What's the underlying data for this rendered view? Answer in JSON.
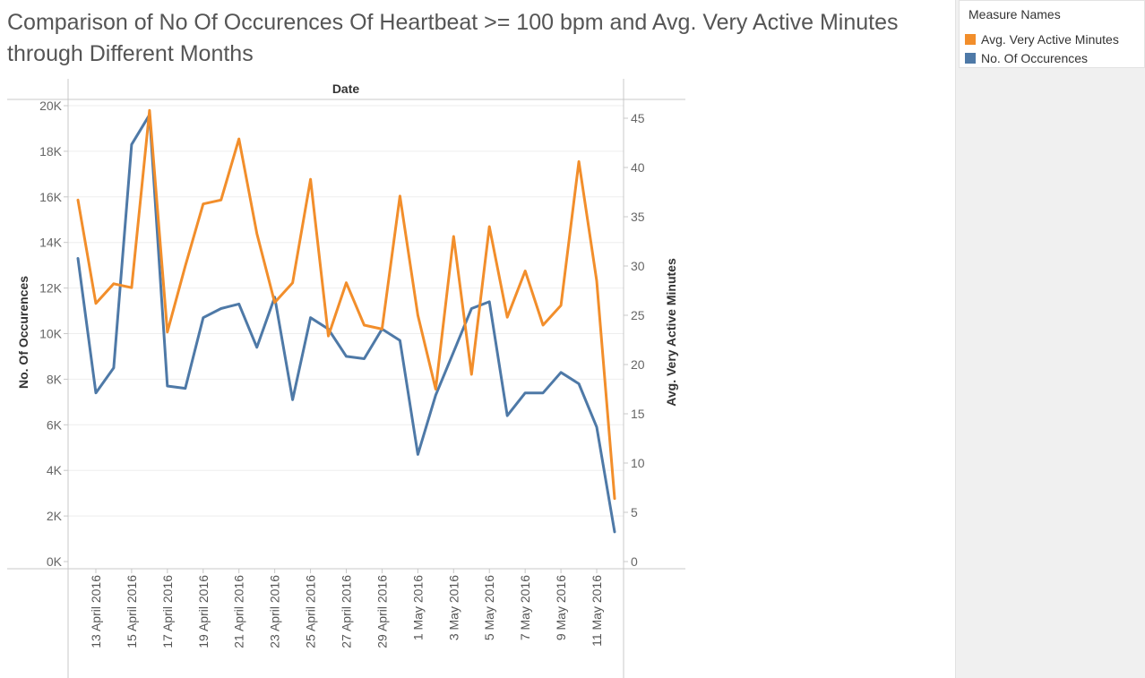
{
  "title": "Comparison of No Of Occurences Of Heartbeat >= 100 bpm and Avg. Very Active Minutes through Different Months",
  "legend": {
    "title": "Measure Names",
    "items": [
      {
        "label": "Avg. Very Active Minutes",
        "color": "#f28e2b"
      },
      {
        "label": "No. Of Occurences",
        "color": "#4e79a7"
      }
    ]
  },
  "chart_data": {
    "type": "line",
    "xlabel": "Date",
    "ylabel_left": "No. Of Occurences",
    "ylabel_right": "Avg. Very Active Minutes",
    "ylim_left": [
      0,
      20000
    ],
    "ylim_right": [
      0,
      48
    ],
    "yticks_left": [
      {
        "v": 0,
        "label": "0K"
      },
      {
        "v": 2000,
        "label": "2K"
      },
      {
        "v": 4000,
        "label": "4K"
      },
      {
        "v": 6000,
        "label": "6K"
      },
      {
        "v": 8000,
        "label": "8K"
      },
      {
        "v": 10000,
        "label": "10K"
      },
      {
        "v": 12000,
        "label": "12K"
      },
      {
        "v": 14000,
        "label": "14K"
      },
      {
        "v": 16000,
        "label": "16K"
      },
      {
        "v": 18000,
        "label": "18K"
      },
      {
        "v": 20000,
        "label": "20K"
      }
    ],
    "yticks_right": [
      0,
      5,
      10,
      15,
      20,
      25,
      30,
      35,
      40,
      45
    ],
    "x": [
      "12 April 2016",
      "13 April 2016",
      "14 April 2016",
      "15 April 2016",
      "16 April 2016",
      "17 April 2016",
      "18 April 2016",
      "19 April 2016",
      "20 April 2016",
      "21 April 2016",
      "22 April 2016",
      "23 April 2016",
      "24 April 2016",
      "25 April 2016",
      "26 April 2016",
      "27 April 2016",
      "28 April 2016",
      "29 April 2016",
      "30 April 2016",
      "1 May 2016",
      "2 May 2016",
      "3 May 2016",
      "4 May 2016",
      "5 May 2016",
      "6 May 2016",
      "7 May 2016",
      "8 May 2016",
      "9 May 2016",
      "10 May 2016",
      "11 May 2016",
      "12 May 2016"
    ],
    "xtick_labels": [
      "13 April 2016",
      "15 April 2016",
      "17 April 2016",
      "19 April 2016",
      "21 April 2016",
      "23 April 2016",
      "25 April 2016",
      "27 April 2016",
      "29 April 2016",
      "1 May 2016",
      "3 May 2016",
      "5 May 2016",
      "7 May 2016",
      "9 May 2016",
      "11 May 2016"
    ],
    "series": [
      {
        "name": "No. Of Occurences",
        "axis": "left",
        "color": "#4e79a7",
        "values": [
          13300,
          7400,
          8500,
          18300,
          19600,
          7700,
          7600,
          10700,
          11100,
          11300,
          9400,
          11600,
          7100,
          10700,
          10200,
          9000,
          8900,
          10200,
          9700,
          4700,
          7300,
          9200,
          11100,
          11400,
          6400,
          7400,
          7400,
          8300,
          7800,
          5900,
          1300
        ]
      },
      {
        "name": "Avg. Very Active Minutes",
        "axis": "right",
        "color": "#f28e2b",
        "values": [
          36.7,
          26.2,
          28.2,
          27.8,
          45.8,
          23.3,
          30.0,
          36.3,
          36.7,
          42.9,
          33.3,
          26.3,
          28.3,
          38.8,
          22.9,
          28.3,
          24.0,
          23.6,
          37.1,
          25.0,
          17.5,
          33.0,
          19.0,
          34.0,
          24.8,
          29.5,
          24.0,
          26.0,
          40.6,
          28.5,
          6.4
        ]
      }
    ]
  }
}
